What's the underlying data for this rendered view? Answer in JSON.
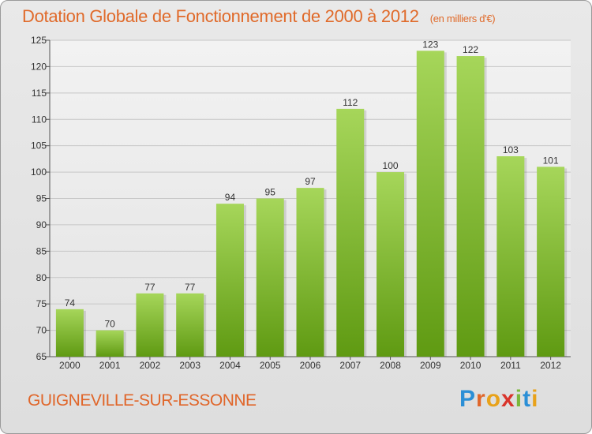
{
  "title": "Dotation Globale de Fonctionnement de 2000 à 2012",
  "unit": "(en milliers d'€)",
  "commune": "GUIGNEVILLE-SUR-ESSONNE",
  "logo": {
    "text": "Proxiti",
    "colors": [
      "#2b8fd6",
      "#e0662a",
      "#e8a21a",
      "#d9342b",
      "#7bb83a",
      "#2b8fd6",
      "#e8a21a"
    ]
  },
  "colors": {
    "bar_top": "#a6d65a",
    "bar_bottom": "#5f9a12",
    "grid": "#c7c7c7",
    "axis": "#555555"
  },
  "chart_data": {
    "type": "bar",
    "title": "Dotation Globale de Fonctionnement de 2000 à 2012",
    "subtitle": "(en milliers d'€)",
    "xlabel": "",
    "ylabel": "",
    "categories": [
      "2000",
      "2001",
      "2002",
      "2003",
      "2004",
      "2005",
      "2006",
      "2007",
      "2008",
      "2009",
      "2010",
      "2011",
      "2012"
    ],
    "values": [
      74,
      70,
      77,
      77,
      94,
      95,
      97,
      112,
      100,
      123,
      122,
      103,
      101
    ],
    "ylim": [
      65,
      125
    ],
    "yticks": [
      65,
      70,
      75,
      80,
      85,
      90,
      95,
      100,
      105,
      110,
      115,
      120,
      125
    ],
    "grid": true,
    "legend": "none"
  }
}
